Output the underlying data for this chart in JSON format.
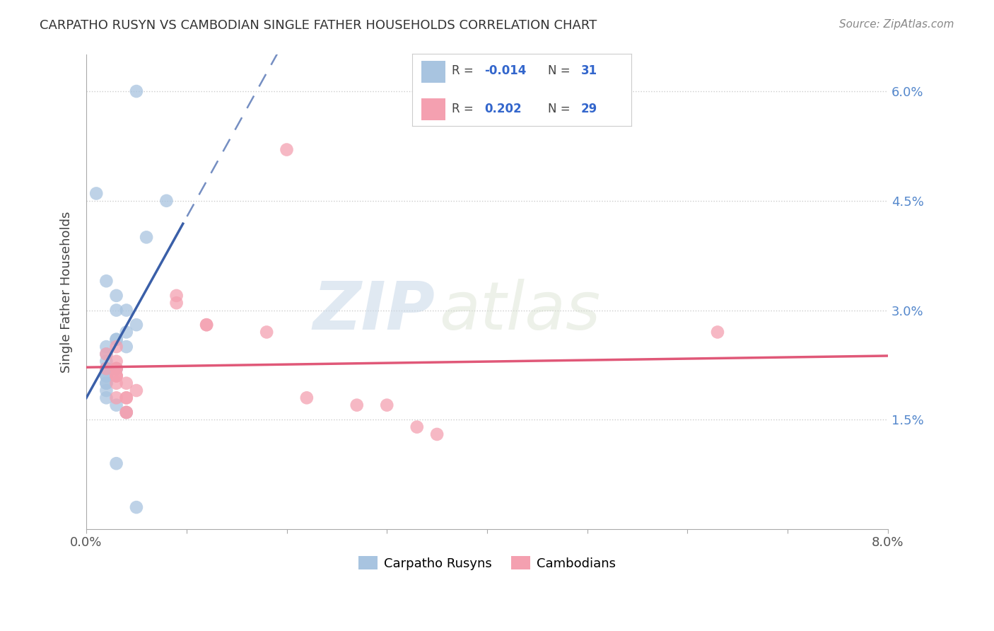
{
  "title": "CARPATHO RUSYN VS CAMBODIAN SINGLE FATHER HOUSEHOLDS CORRELATION CHART",
  "source": "Source: ZipAtlas.com",
  "ylabel": "Single Father Households",
  "xmin": 0.0,
  "xmax": 0.08,
  "ymin": 0.0,
  "ymax": 0.065,
  "blue_R": "-0.014",
  "blue_N": "31",
  "pink_R": "0.202",
  "pink_N": "29",
  "blue_color": "#a8c4e0",
  "pink_color": "#f4a0b0",
  "blue_line_color": "#3a5fa8",
  "pink_line_color": "#e05878",
  "blue_scatter": [
    [
      0.005,
      0.06
    ],
    [
      0.001,
      0.046
    ],
    [
      0.008,
      0.045
    ],
    [
      0.006,
      0.04
    ],
    [
      0.002,
      0.034
    ],
    [
      0.003,
      0.032
    ],
    [
      0.003,
      0.03
    ],
    [
      0.004,
      0.03
    ],
    [
      0.005,
      0.028
    ],
    [
      0.004,
      0.027
    ],
    [
      0.003,
      0.026
    ],
    [
      0.003,
      0.026
    ],
    [
      0.004,
      0.025
    ],
    [
      0.002,
      0.025
    ],
    [
      0.002,
      0.024
    ],
    [
      0.002,
      0.023
    ],
    [
      0.002,
      0.022
    ],
    [
      0.002,
      0.022
    ],
    [
      0.002,
      0.022
    ],
    [
      0.003,
      0.022
    ],
    [
      0.003,
      0.022
    ],
    [
      0.002,
      0.021
    ],
    [
      0.002,
      0.021
    ],
    [
      0.002,
      0.02
    ],
    [
      0.002,
      0.02
    ],
    [
      0.002,
      0.019
    ],
    [
      0.002,
      0.018
    ],
    [
      0.003,
      0.017
    ],
    [
      0.004,
      0.016
    ],
    [
      0.003,
      0.009
    ],
    [
      0.005,
      0.003
    ]
  ],
  "pink_scatter": [
    [
      0.02,
      0.052
    ],
    [
      0.009,
      0.032
    ],
    [
      0.009,
      0.031
    ],
    [
      0.012,
      0.028
    ],
    [
      0.012,
      0.028
    ],
    [
      0.018,
      0.027
    ],
    [
      0.003,
      0.025
    ],
    [
      0.002,
      0.024
    ],
    [
      0.003,
      0.023
    ],
    [
      0.003,
      0.022
    ],
    [
      0.002,
      0.022
    ],
    [
      0.003,
      0.022
    ],
    [
      0.003,
      0.021
    ],
    [
      0.003,
      0.021
    ],
    [
      0.003,
      0.021
    ],
    [
      0.004,
      0.02
    ],
    [
      0.003,
      0.02
    ],
    [
      0.005,
      0.019
    ],
    [
      0.004,
      0.018
    ],
    [
      0.003,
      0.018
    ],
    [
      0.004,
      0.018
    ],
    [
      0.022,
      0.018
    ],
    [
      0.027,
      0.017
    ],
    [
      0.03,
      0.017
    ],
    [
      0.004,
      0.016
    ],
    [
      0.004,
      0.016
    ],
    [
      0.033,
      0.014
    ],
    [
      0.035,
      0.013
    ],
    [
      0.063,
      0.027
    ]
  ],
  "watermark_zip": "ZIP",
  "watermark_atlas": "atlas",
  "background_color": "#ffffff",
  "grid_color": "#cccccc"
}
